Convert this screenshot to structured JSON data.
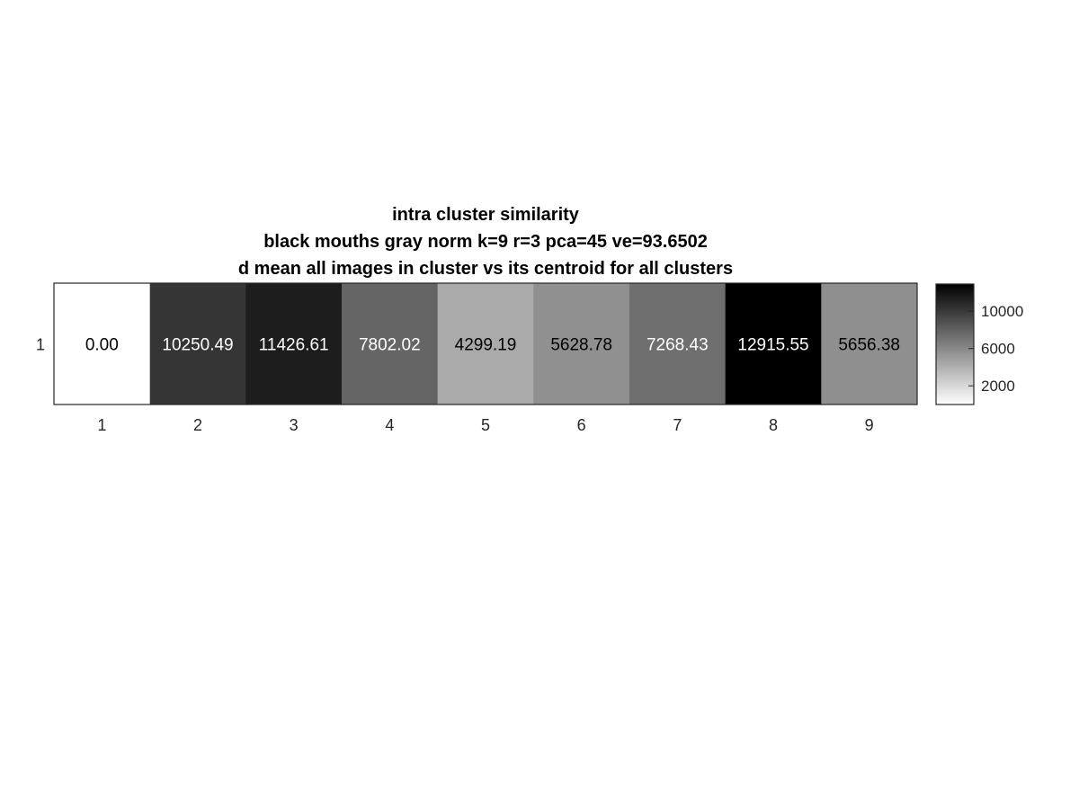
{
  "chart_data": {
    "type": "heatmap",
    "title_lines": [
      "intra cluster similarity",
      "black mouths gray norm k=9 r=3 pca=45 ve=93.6502",
      "d mean all images in cluster vs its centroid for all clusters"
    ],
    "x_categories": [
      "1",
      "2",
      "3",
      "4",
      "5",
      "6",
      "7",
      "8",
      "9"
    ],
    "y_categories": [
      "1"
    ],
    "values": [
      [
        0.0,
        10250.49,
        11426.61,
        7802.02,
        4299.19,
        5628.78,
        7268.43,
        12915.55,
        5656.38
      ]
    ],
    "value_labels": [
      [
        "0.00",
        "10250.49",
        "11426.61",
        "7802.02",
        "4299.19",
        "5628.78",
        "7268.43",
        "12915.55",
        "5656.38"
      ]
    ],
    "colormap": "gray-reversed",
    "color_low": "#ffffff",
    "color_high": "#000000",
    "clim": [
      0,
      12915.55
    ],
    "colorbar": {
      "ticks": [
        2000,
        6000,
        10000
      ],
      "tick_labels": [
        "2000",
        "6000",
        "10000"
      ]
    },
    "grid": false
  }
}
